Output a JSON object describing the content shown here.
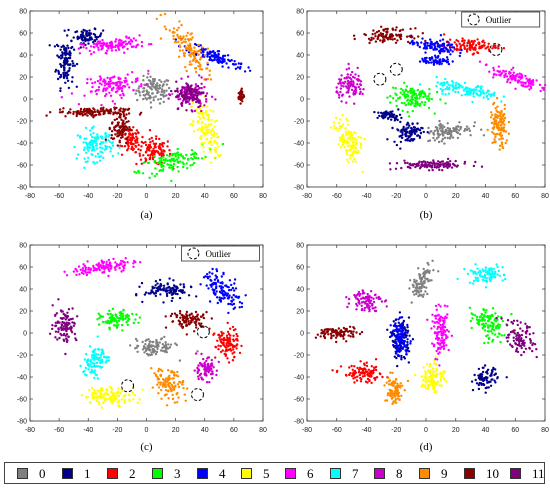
{
  "chart_data": [
    {
      "type": "scatter",
      "caption": "(a)",
      "xlim": [
        -80,
        80
      ],
      "ylim": [
        -80,
        80
      ],
      "xticks": [
        -80,
        -60,
        -40,
        -20,
        0,
        20,
        40,
        60,
        80
      ],
      "yticks": [
        -80,
        -60,
        -40,
        -20,
        0,
        20,
        40,
        60,
        80
      ],
      "grid": false,
      "outlier_label": "",
      "outliers": [],
      "clusters": [
        {
          "label": "0",
          "cx": 5,
          "cy": 8,
          "sx": 6,
          "sy": 6,
          "rot": 0
        },
        {
          "label": "1",
          "cx": -56,
          "cy": 35,
          "sx": 3,
          "sy": 12,
          "rot": 0
        },
        {
          "label": "1",
          "cx": -40,
          "cy": 57,
          "sx": 5,
          "sy": 3,
          "rot": 0
        },
        {
          "label": "2",
          "cx": 5,
          "cy": -48,
          "sx": 6,
          "sy": 6,
          "rot": 0
        },
        {
          "label": "2",
          "cx": -10,
          "cy": -38,
          "sx": 3,
          "sy": 5,
          "rot": 0
        },
        {
          "label": "3",
          "cx": 18,
          "cy": -57,
          "sx": 12,
          "sy": 4,
          "rot": 0.35
        },
        {
          "label": "4",
          "cx": 48,
          "cy": 38,
          "sx": 11,
          "sy": 3,
          "rot": -0.5
        },
        {
          "label": "5",
          "cx": 40,
          "cy": -27,
          "sx": 4,
          "sy": 14,
          "rot": 0.2
        },
        {
          "label": "6",
          "cx": -22,
          "cy": 49,
          "sx": 11,
          "sy": 3,
          "rot": 0.15
        },
        {
          "label": "6",
          "cx": -22,
          "cy": 12,
          "sx": 10,
          "sy": 5,
          "rot": 0.3
        },
        {
          "label": "7",
          "cx": -35,
          "cy": -42,
          "sx": 6,
          "sy": 7,
          "rot": 0
        },
        {
          "label": "8",
          "cx": 31,
          "cy": 4,
          "sx": 6,
          "sy": 6,
          "rot": 0
        },
        {
          "label": "9",
          "cx": 29,
          "cy": 45,
          "sx": 4,
          "sy": 14,
          "rot": 0.5
        },
        {
          "label": "10",
          "cx": -38,
          "cy": -12,
          "sx": 12,
          "sy": 2,
          "rot": 0
        },
        {
          "label": "10",
          "cx": -18,
          "cy": -25,
          "sx": 3,
          "sy": 8,
          "rot": 0
        },
        {
          "label": "10",
          "cx": 65,
          "cy": 3,
          "sx": 1,
          "sy": 3,
          "rot": 0
        },
        {
          "label": "11",
          "cx": 30,
          "cy": 4,
          "sx": 5,
          "sy": 6,
          "rot": 0
        }
      ]
    },
    {
      "type": "scatter",
      "caption": "(b)",
      "xlim": [
        -80,
        80
      ],
      "ylim": [
        -80,
        80
      ],
      "xticks": [
        -80,
        -60,
        -40,
        -20,
        0,
        20,
        40,
        60,
        80
      ],
      "yticks": [
        -80,
        -60,
        -40,
        -20,
        0,
        20,
        40,
        60,
        80
      ],
      "grid": false,
      "outlier_label": "Outlier",
      "outliers": [
        [
          -31,
          18
        ],
        [
          -20,
          27
        ],
        [
          47,
          45
        ]
      ],
      "clusters": [
        {
          "label": "0",
          "cx": 15,
          "cy": -29,
          "sx": 8,
          "sy": 4,
          "rot": 0.2
        },
        {
          "label": "1",
          "cx": -12,
          "cy": -30,
          "sx": 5,
          "sy": 5,
          "rot": 0
        },
        {
          "label": "1",
          "cx": -25,
          "cy": -15,
          "sx": 4,
          "sy": 2,
          "rot": 0
        },
        {
          "label": "2",
          "cx": 30,
          "cy": 48,
          "sx": 9,
          "sy": 3,
          "rot": 0
        },
        {
          "label": "3",
          "cx": -10,
          "cy": 2,
          "sx": 7,
          "sy": 6,
          "rot": 0
        },
        {
          "label": "4",
          "cx": 5,
          "cy": 48,
          "sx": 8,
          "sy": 3,
          "rot": -0.2
        },
        {
          "label": "4",
          "cx": 7,
          "cy": 35,
          "sx": 5,
          "sy": 2,
          "rot": 0
        },
        {
          "label": "5",
          "cx": -52,
          "cy": -37,
          "sx": 4,
          "sy": 10,
          "rot": 0.3
        },
        {
          "label": "6",
          "cx": 59,
          "cy": 20,
          "sx": 9,
          "sy": 3,
          "rot": -0.45
        },
        {
          "label": "7",
          "cx": 27,
          "cy": 8,
          "sx": 11,
          "sy": 3,
          "rot": -0.25
        },
        {
          "label": "8",
          "cx": -50,
          "cy": 12,
          "sx": 5,
          "sy": 6,
          "rot": 0
        },
        {
          "label": "9",
          "cx": 49,
          "cy": -25,
          "sx": 3,
          "sy": 10,
          "rot": 0
        },
        {
          "label": "10",
          "cx": -26,
          "cy": 58,
          "sx": 8,
          "sy": 3,
          "rot": 0
        },
        {
          "label": "11",
          "cx": 5,
          "cy": -60,
          "sx": 12,
          "sy": 2,
          "rot": 0
        }
      ]
    },
    {
      "type": "scatter",
      "caption": "(c)",
      "xlim": [
        -80,
        80
      ],
      "ylim": [
        -80,
        80
      ],
      "xticks": [
        -80,
        -60,
        -40,
        -20,
        0,
        20,
        40,
        60,
        80
      ],
      "yticks": [
        -80,
        -60,
        -40,
        -20,
        0,
        20,
        40,
        60,
        80
      ],
      "grid": false,
      "outlier_label": "Outlier",
      "outliers": [
        [
          39,
          1
        ],
        [
          -13,
          -48
        ],
        [
          35,
          -56
        ]
      ],
      "clusters": [
        {
          "label": "0",
          "cx": 5,
          "cy": -13,
          "sx": 7,
          "sy": 4,
          "rot": 0
        },
        {
          "label": "1",
          "cx": 15,
          "cy": 39,
          "sx": 8,
          "sy": 4,
          "rot": 0
        },
        {
          "label": "2",
          "cx": 55,
          "cy": -10,
          "sx": 4,
          "sy": 7,
          "rot": 0
        },
        {
          "label": "3",
          "cx": -20,
          "cy": 12,
          "sx": 6,
          "sy": 4,
          "rot": 0
        },
        {
          "label": "4",
          "cx": 52,
          "cy": 40,
          "sx": 5,
          "sy": 9,
          "rot": 0.5
        },
        {
          "label": "5",
          "cx": -25,
          "cy": -57,
          "sx": 9,
          "sy": 4,
          "rot": 0
        },
        {
          "label": "6",
          "cx": -30,
          "cy": 60,
          "sx": 11,
          "sy": 3,
          "rot": 0.2
        },
        {
          "label": "7",
          "cx": -35,
          "cy": -25,
          "sx": 4,
          "sy": 7,
          "rot": -0.3
        },
        {
          "label": "8",
          "cx": 40,
          "cy": -33,
          "sx": 4,
          "sy": 5,
          "rot": 0
        },
        {
          "label": "9",
          "cx": 15,
          "cy": -47,
          "sx": 5,
          "sy": 7,
          "rot": 0.4
        },
        {
          "label": "10",
          "cx": 30,
          "cy": 12,
          "sx": 7,
          "sy": 4,
          "rot": 0
        },
        {
          "label": "11",
          "cx": -56,
          "cy": 8,
          "sx": 4,
          "sy": 8,
          "rot": 0
        }
      ]
    },
    {
      "type": "scatter",
      "caption": "(d)",
      "xlim": [
        -80,
        80
      ],
      "ylim": [
        -80,
        80
      ],
      "xticks": [
        -80,
        -60,
        -40,
        -20,
        0,
        20,
        40,
        60,
        80
      ],
      "yticks": [
        -80,
        -60,
        -40,
        -20,
        0,
        20,
        40,
        60,
        80
      ],
      "grid": false,
      "outlier_label": "",
      "outliers": [],
      "clusters": [
        {
          "label": "0",
          "cx": -3,
          "cy": 45,
          "sx": 3,
          "sy": 8,
          "rot": -0.3
        },
        {
          "label": "1",
          "cx": -17,
          "cy": -5,
          "sx": 3,
          "sy": 9,
          "rot": 0
        },
        {
          "label": "1",
          "cx": 40,
          "cy": -42,
          "sx": 4,
          "sy": 5,
          "rot": 0
        },
        {
          "label": "2",
          "cx": -42,
          "cy": -37,
          "sx": 7,
          "sy": 4,
          "rot": 0
        },
        {
          "label": "3",
          "cx": 42,
          "cy": 8,
          "sx": 5,
          "sy": 8,
          "rot": 0.5
        },
        {
          "label": "4",
          "cx": -17,
          "cy": -5,
          "sx": 3,
          "sy": 8,
          "rot": 0
        },
        {
          "label": "5",
          "cx": 5,
          "cy": -40,
          "sx": 4,
          "sy": 7,
          "rot": 0
        },
        {
          "label": "6",
          "cx": 10,
          "cy": 0,
          "sx": 3,
          "sy": 10,
          "rot": 0
        },
        {
          "label": "7",
          "cx": 40,
          "cy": 53,
          "sx": 6,
          "sy": 4,
          "rot": 0
        },
        {
          "label": "8",
          "cx": -40,
          "cy": 30,
          "sx": 5,
          "sy": 5,
          "rot": 0
        },
        {
          "label": "9",
          "cx": -22,
          "cy": -52,
          "sx": 3,
          "sy": 7,
          "rot": 0
        },
        {
          "label": "10",
          "cx": -58,
          "cy": 0,
          "sx": 7,
          "sy": 3,
          "rot": 0
        },
        {
          "label": "11",
          "cx": 63,
          "cy": -5,
          "sx": 4,
          "sy": 7,
          "rot": 0.3
        }
      ]
    }
  ],
  "legend": [
    {
      "label": "0",
      "color": "#808080"
    },
    {
      "label": "1",
      "color": "#00008b"
    },
    {
      "label": "2",
      "color": "#ff0000"
    },
    {
      "label": "3",
      "color": "#00ff00"
    },
    {
      "label": "4",
      "color": "#0000ff"
    },
    {
      "label": "5",
      "color": "#ffff00"
    },
    {
      "label": "6",
      "color": "#ff00ff"
    },
    {
      "label": "7",
      "color": "#00ffff"
    },
    {
      "label": "8",
      "color": "#cc00cc"
    },
    {
      "label": "9",
      "color": "#ff8c00"
    },
    {
      "label": "10",
      "color": "#8b0000"
    },
    {
      "label": "11",
      "color": "#800080"
    }
  ]
}
